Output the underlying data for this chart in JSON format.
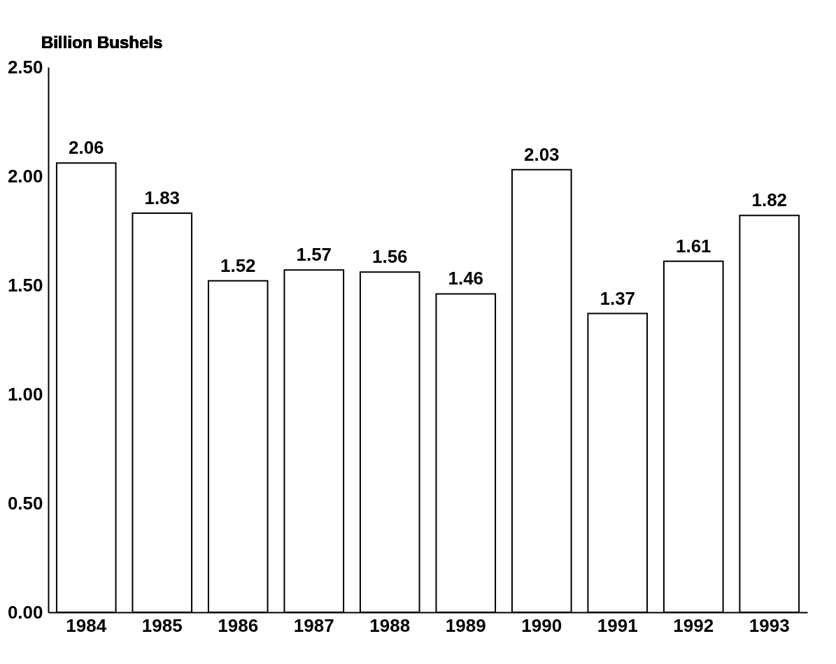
{
  "chart_data": {
    "type": "bar",
    "ylabel": "Billion Bushels",
    "categories": [
      "1984",
      "1985",
      "1986",
      "1987",
      "1988",
      "1989",
      "1990",
      "1991",
      "1992",
      "1993"
    ],
    "values": [
      2.06,
      1.83,
      1.52,
      1.57,
      1.56,
      1.46,
      2.03,
      1.37,
      1.61,
      1.82
    ],
    "color": "#ffffff",
    "ylim": [
      0,
      2.5
    ],
    "yticks": [
      {
        "value": 0,
        "label": "0.00"
      },
      {
        "value": 0.5,
        "label": "0.50"
      },
      {
        "value": 1,
        "label": "1.00"
      },
      {
        "value": 1.5,
        "label": "1.50"
      },
      {
        "value": 2,
        "label": "2.00"
      },
      {
        "value": 2.5,
        "label": "2.50"
      }
    ],
    "grid": false,
    "data_labels": true
  }
}
